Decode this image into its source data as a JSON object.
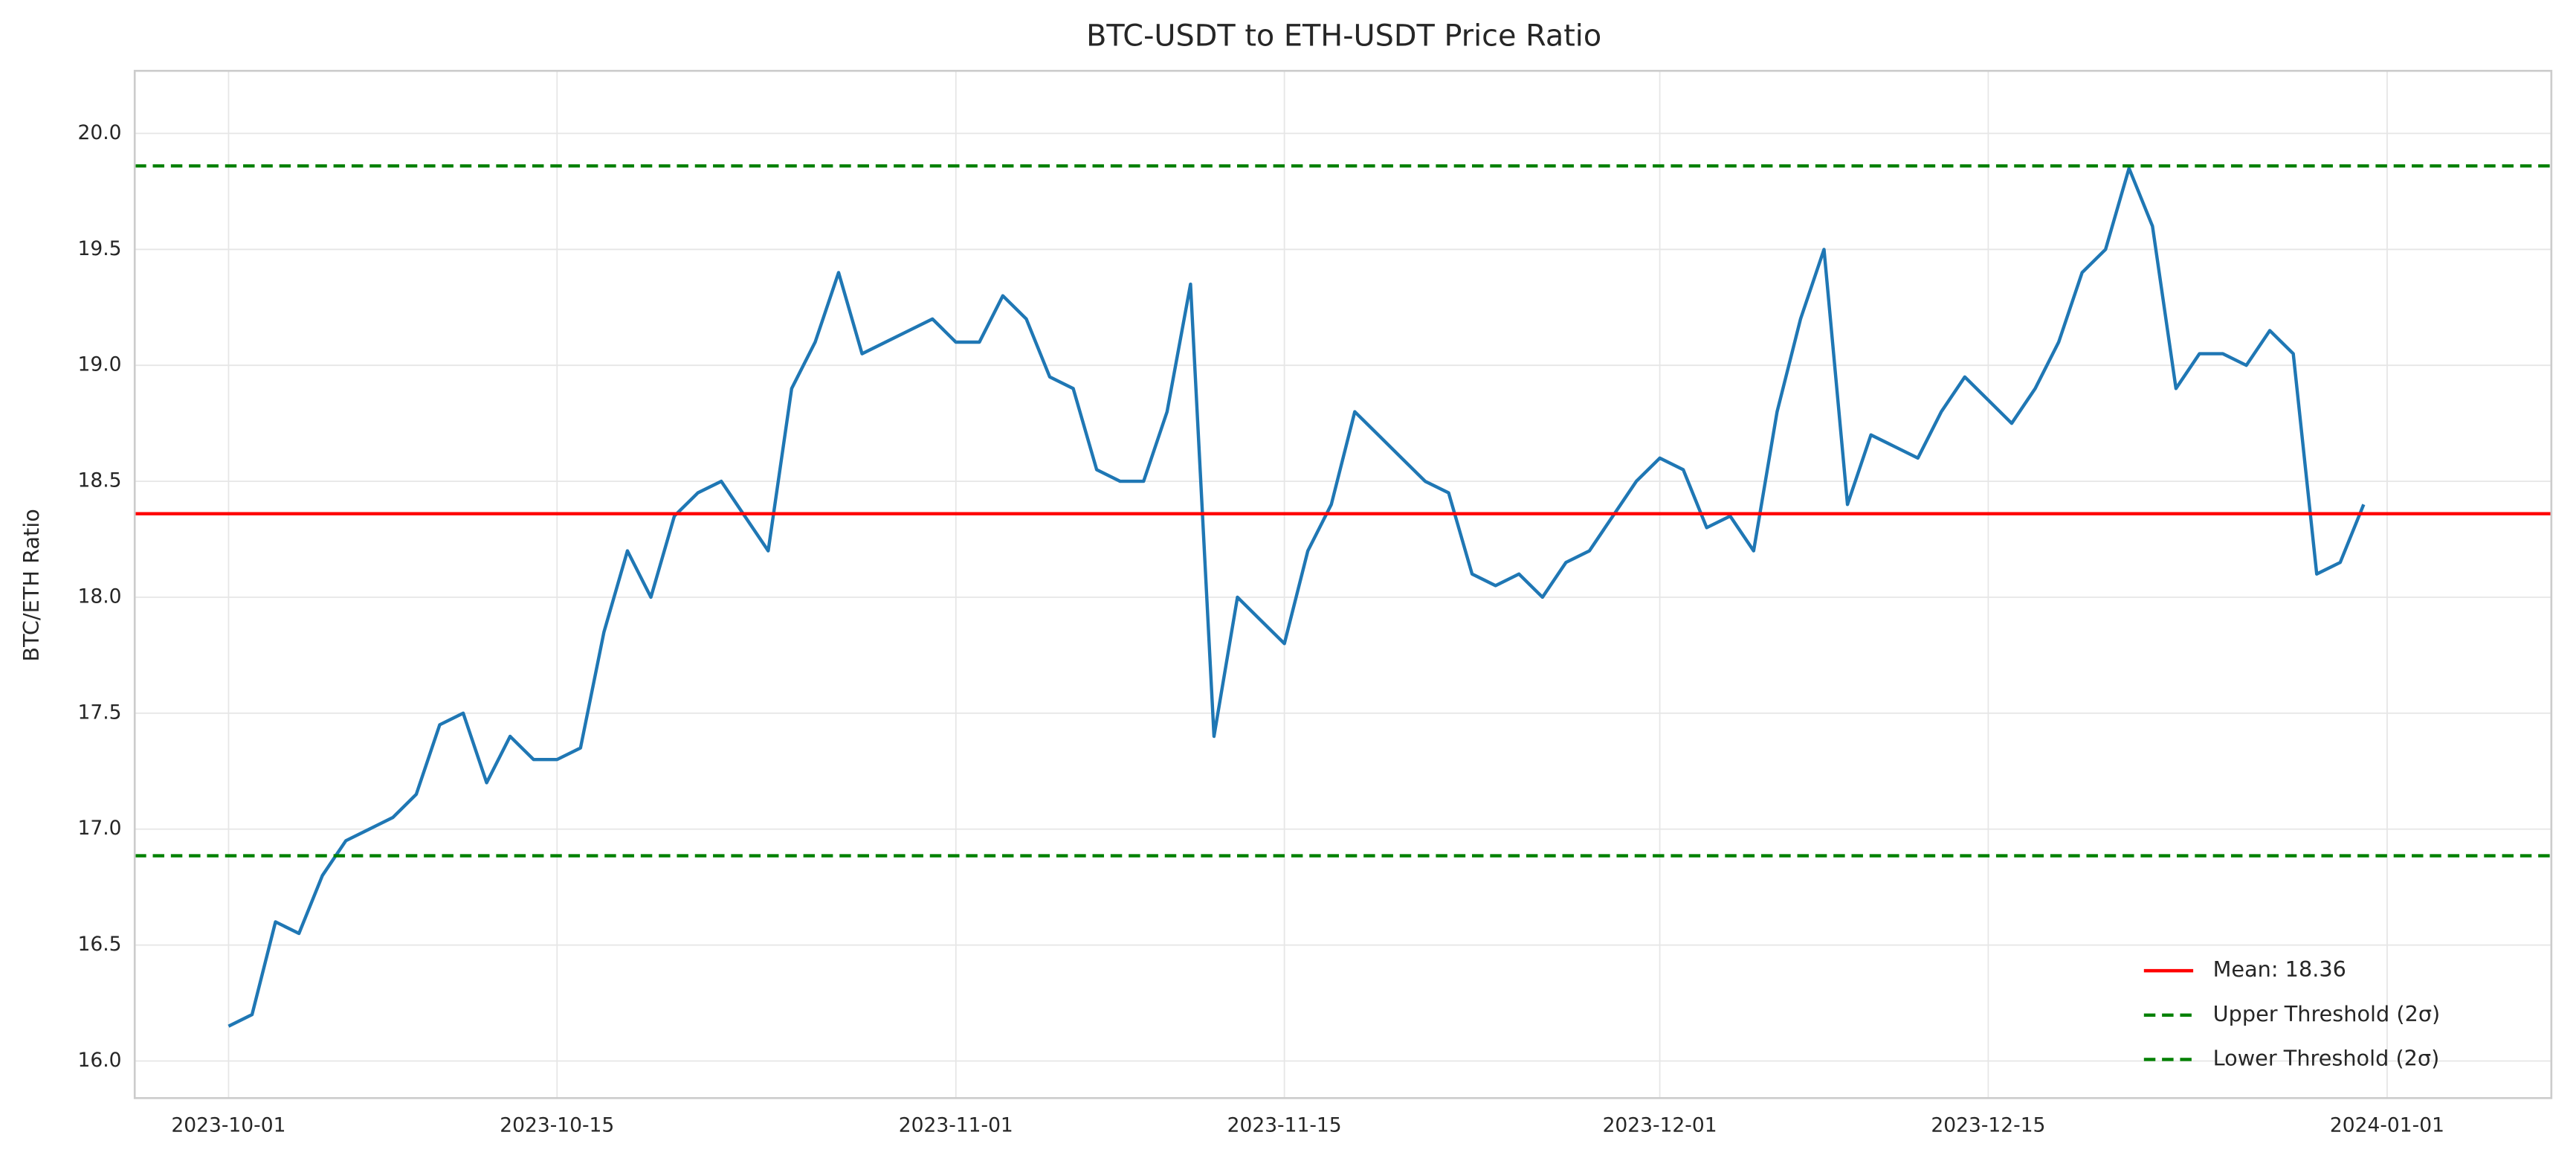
{
  "chart_data": {
    "type": "line",
    "title": "BTC-USDT to ETH-USDT Price Ratio",
    "y_label": "BTC/ETH Ratio",
    "x": [
      "2023-10-01",
      "2023-10-02",
      "2023-10-03",
      "2023-10-04",
      "2023-10-05",
      "2023-10-06",
      "2023-10-07",
      "2023-10-08",
      "2023-10-09",
      "2023-10-10",
      "2023-10-11",
      "2023-10-12",
      "2023-10-13",
      "2023-10-14",
      "2023-10-15",
      "2023-10-16",
      "2023-10-17",
      "2023-10-18",
      "2023-10-19",
      "2023-10-20",
      "2023-10-21",
      "2023-10-22",
      "2023-10-23",
      "2023-10-24",
      "2023-10-25",
      "2023-10-26",
      "2023-10-27",
      "2023-10-28",
      "2023-10-29",
      "2023-10-30",
      "2023-10-31",
      "2023-11-01",
      "2023-11-02",
      "2023-11-03",
      "2023-11-04",
      "2023-11-05",
      "2023-11-06",
      "2023-11-07",
      "2023-11-08",
      "2023-11-09",
      "2023-11-10",
      "2023-11-11",
      "2023-11-12",
      "2023-11-13",
      "2023-11-14",
      "2023-11-15",
      "2023-11-16",
      "2023-11-17",
      "2023-11-18",
      "2023-11-19",
      "2023-11-20",
      "2023-11-21",
      "2023-11-22",
      "2023-11-23",
      "2023-11-24",
      "2023-11-25",
      "2023-11-26",
      "2023-11-27",
      "2023-11-28",
      "2023-11-29",
      "2023-11-30",
      "2023-12-01",
      "2023-12-02",
      "2023-12-03",
      "2023-12-04",
      "2023-12-05",
      "2023-12-06",
      "2023-12-07",
      "2023-12-08",
      "2023-12-09",
      "2023-12-10",
      "2023-12-11",
      "2023-12-12",
      "2023-12-13",
      "2023-12-14",
      "2023-12-15",
      "2023-12-16",
      "2023-12-17",
      "2023-12-18",
      "2023-12-19",
      "2023-12-20",
      "2023-12-21",
      "2023-12-22",
      "2023-12-23",
      "2023-12-24",
      "2023-12-25",
      "2023-12-26",
      "2023-12-27",
      "2023-12-28",
      "2023-12-29",
      "2023-12-30",
      "2023-12-31"
    ],
    "series": [
      {
        "color": "#1f77b4",
        "values": [
          16.15,
          16.2,
          16.6,
          16.55,
          16.8,
          16.95,
          17.0,
          17.05,
          17.15,
          17.45,
          17.5,
          17.2,
          17.4,
          17.3,
          17.3,
          17.35,
          17.85,
          18.2,
          18.0,
          18.35,
          18.45,
          18.5,
          18.35,
          18.2,
          18.9,
          19.1,
          19.4,
          19.05,
          19.1,
          19.15,
          19.2,
          19.1,
          19.1,
          19.3,
          19.2,
          18.95,
          18.9,
          18.55,
          18.5,
          18.5,
          18.8,
          19.35,
          17.4,
          18.0,
          17.9,
          17.8,
          18.2,
          18.4,
          18.8,
          18.7,
          18.6,
          18.5,
          18.45,
          18.1,
          18.05,
          18.1,
          18.0,
          18.15,
          18.2,
          18.35,
          18.5,
          18.6,
          18.55,
          18.3,
          18.35,
          18.2,
          18.8,
          19.2,
          19.5,
          18.4,
          18.7,
          18.65,
          18.6,
          18.8,
          18.95,
          18.85,
          18.75,
          18.9,
          19.1,
          19.4,
          19.5,
          19.85,
          19.6,
          18.9,
          19.05,
          19.05,
          19.0,
          19.15,
          19.05,
          18.1,
          18.15,
          18.4
        ]
      }
    ],
    "hlines": [
      {
        "name": "Mean: 18.36",
        "value": 18.36,
        "color": "#ff0000",
        "style": "solid"
      },
      {
        "name": "Upper Threshold (2σ)",
        "value": 19.86,
        "color": "#008000",
        "style": "dashed"
      },
      {
        "name": "Lower Threshold (2σ)",
        "value": 16.885,
        "color": "#008000",
        "style": "dashed"
      }
    ],
    "xlim": [
      "2023-09-27",
      "2024-01-08"
    ],
    "xticks": [
      "2023-10-01",
      "2023-10-15",
      "2023-11-01",
      "2023-11-15",
      "2023-12-01",
      "2023-12-15",
      "2024-01-01"
    ],
    "ylim": [
      15.84,
      20.27
    ],
    "yticks": [
      {
        "value": 16,
        "label": "16.0"
      },
      {
        "value": 16.5,
        "label": "16.5"
      },
      {
        "value": 17,
        "label": "17.0"
      },
      {
        "value": 17.5,
        "label": "17.5"
      },
      {
        "value": 18,
        "label": "18.0"
      },
      {
        "value": 18.5,
        "label": "18.5"
      },
      {
        "value": 19,
        "label": "19.0"
      },
      {
        "value": 19.5,
        "label": "19.5"
      },
      {
        "value": 20,
        "label": "20.0"
      }
    ],
    "grid": true,
    "legend": "lower right"
  }
}
